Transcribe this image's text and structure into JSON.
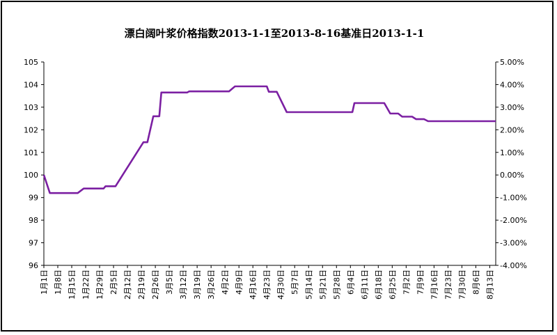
{
  "chart_data": {
    "type": "line",
    "title": "漂白阔叶浆价格指数2013-1-1至2013-8-16基准日2013-1-1",
    "xlabel": "",
    "ylabel": "",
    "ylim": [
      96,
      105
    ],
    "yticks": [
      96,
      97,
      98,
      99,
      100,
      101,
      102,
      103,
      104,
      105
    ],
    "y2lim": [
      -4,
      5
    ],
    "y2ticks": [
      "-4.00%",
      "-3.00%",
      "-2.00%",
      "-1.00%",
      "0.00%",
      "1.00%",
      "2.00%",
      "3.00%",
      "4.00%",
      "5.00%"
    ],
    "xlim": [
      0,
      227
    ],
    "x_tick_labels": [
      {
        "day": 0,
        "label": "1月1日"
      },
      {
        "day": 7,
        "label": "1月8日"
      },
      {
        "day": 14,
        "label": "1月15日"
      },
      {
        "day": 21,
        "label": "1月22日"
      },
      {
        "day": 28,
        "label": "1月29日"
      },
      {
        "day": 35,
        "label": "2月5日"
      },
      {
        "day": 42,
        "label": "2月12日"
      },
      {
        "day": 49,
        "label": "2月19日"
      },
      {
        "day": 56,
        "label": "2月26日"
      },
      {
        "day": 63,
        "label": "3月5日"
      },
      {
        "day": 70,
        "label": "3月12日"
      },
      {
        "day": 77,
        "label": "3月19日"
      },
      {
        "day": 84,
        "label": "3月26日"
      },
      {
        "day": 91,
        "label": "4月2日"
      },
      {
        "day": 98,
        "label": "4月9日"
      },
      {
        "day": 105,
        "label": "4月16日"
      },
      {
        "day": 112,
        "label": "4月23日"
      },
      {
        "day": 119,
        "label": "4月30日"
      },
      {
        "day": 126,
        "label": "5月7日"
      },
      {
        "day": 133,
        "label": "5月14日"
      },
      {
        "day": 140,
        "label": "5月21日"
      },
      {
        "day": 147,
        "label": "5月28日"
      },
      {
        "day": 154,
        "label": "6月4日"
      },
      {
        "day": 161,
        "label": "6月11日"
      },
      {
        "day": 168,
        "label": "6月18日"
      },
      {
        "day": 175,
        "label": "6月25日"
      },
      {
        "day": 182,
        "label": "7月2日"
      },
      {
        "day": 189,
        "label": "7月9日"
      },
      {
        "day": 196,
        "label": "7月16日"
      },
      {
        "day": 203,
        "label": "7月23日"
      },
      {
        "day": 210,
        "label": "7月30日"
      },
      {
        "day": 217,
        "label": "8月6日"
      },
      {
        "day": 224,
        "label": "8月13日"
      }
    ],
    "grid": false,
    "legend": "none",
    "series": [
      {
        "color": "#7b1fa2",
        "points": [
          [
            0,
            100.0
          ],
          [
            3,
            99.2
          ],
          [
            17,
            99.2
          ],
          [
            20,
            99.4
          ],
          [
            30,
            99.4
          ],
          [
            31,
            99.5
          ],
          [
            36,
            99.5
          ],
          [
            50,
            101.45
          ],
          [
            52,
            101.45
          ],
          [
            55,
            102.6
          ],
          [
            58,
            102.6
          ],
          [
            59,
            103.65
          ],
          [
            72,
            103.65
          ],
          [
            73,
            103.7
          ],
          [
            93,
            103.7
          ],
          [
            96,
            103.92
          ],
          [
            112,
            103.92
          ],
          [
            113,
            103.68
          ],
          [
            117,
            103.68
          ],
          [
            122,
            102.78
          ],
          [
            155,
            102.78
          ],
          [
            156,
            103.18
          ],
          [
            171,
            103.18
          ],
          [
            174,
            102.72
          ],
          [
            178,
            102.72
          ],
          [
            180,
            102.58
          ],
          [
            185,
            102.58
          ],
          [
            187,
            102.47
          ],
          [
            191,
            102.47
          ],
          [
            193,
            102.38
          ],
          [
            227,
            102.38
          ]
        ]
      }
    ]
  }
}
